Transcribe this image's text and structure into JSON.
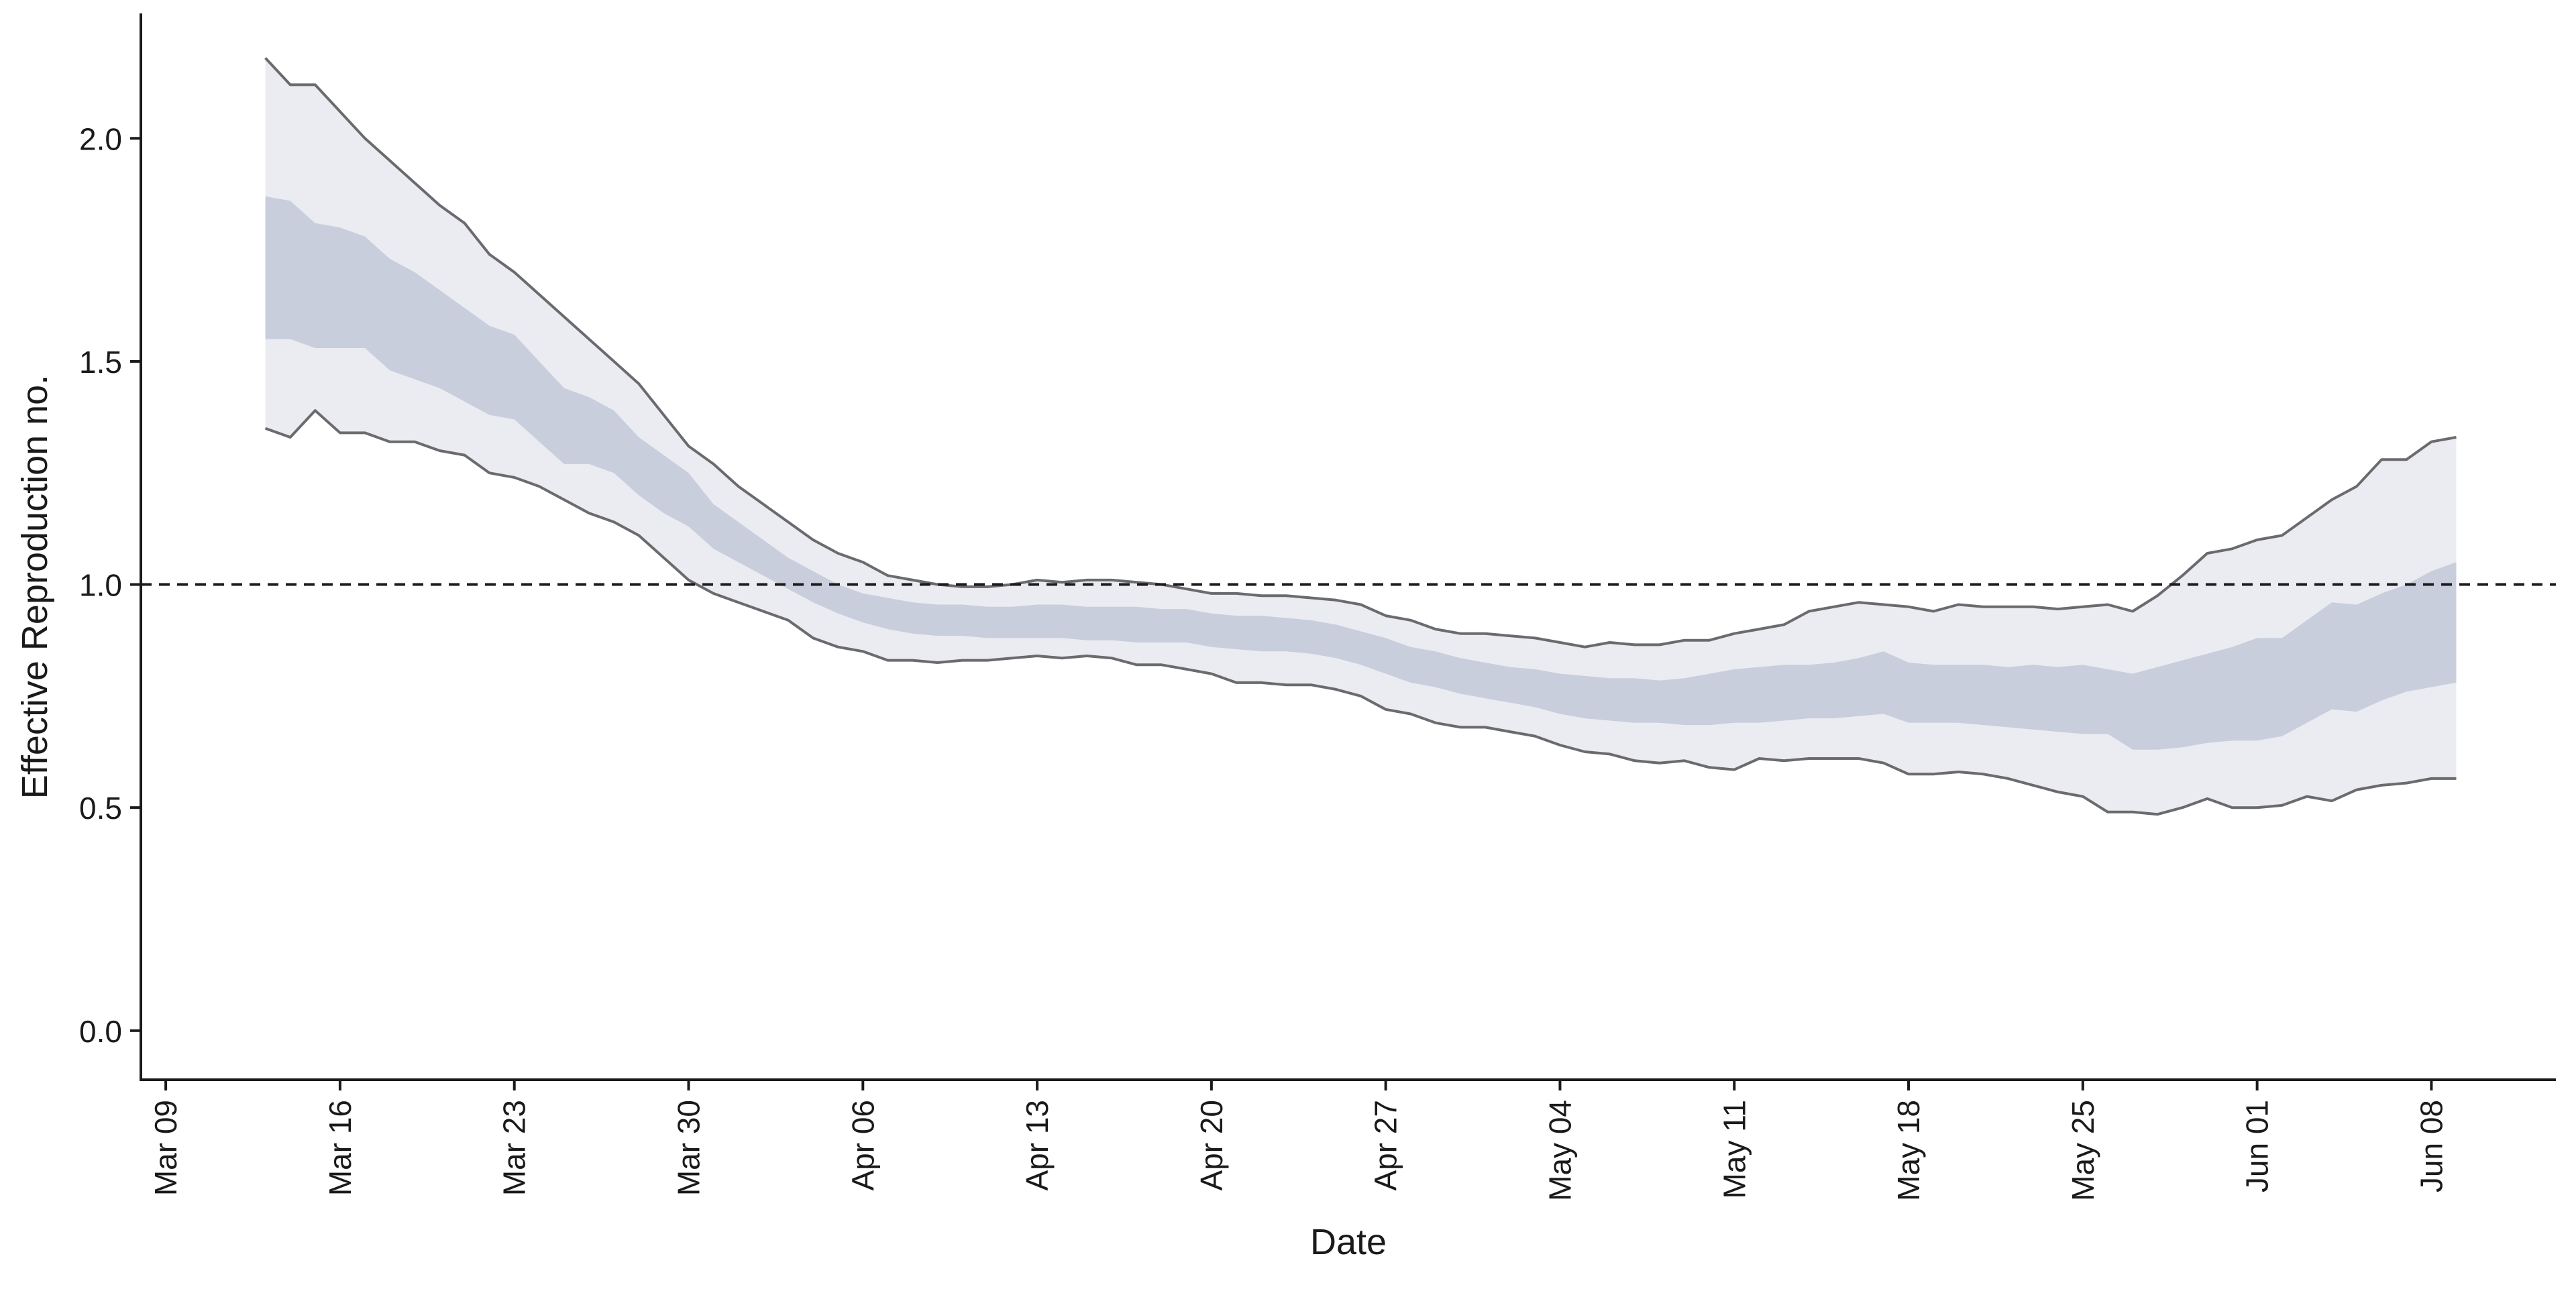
{
  "chart_data": {
    "type": "area",
    "xlabel": "Date",
    "ylabel": "Effective Reproduction no.",
    "x_ticks": [
      "Mar 09",
      "Mar 16",
      "Mar 23",
      "Mar 30",
      "Apr 06",
      "Apr 13",
      "Apr 20",
      "Apr 27",
      "May 04",
      "May 11",
      "May 18",
      "May 25",
      "Jun 01",
      "Jun 08"
    ],
    "y_ticks": [
      "0.0",
      "0.5",
      "1.0",
      "1.5",
      "2.0"
    ],
    "xlim": [
      "2020-03-08",
      "2020-06-13"
    ],
    "ylim": [
      -0.11,
      2.28
    ],
    "reference_line": {
      "y": 1.0,
      "style": "dashed"
    },
    "dates": [
      "2020-03-13",
      "2020-03-14",
      "2020-03-15",
      "2020-03-16",
      "2020-03-17",
      "2020-03-18",
      "2020-03-19",
      "2020-03-20",
      "2020-03-21",
      "2020-03-22",
      "2020-03-23",
      "2020-03-24",
      "2020-03-25",
      "2020-03-26",
      "2020-03-27",
      "2020-03-28",
      "2020-03-29",
      "2020-03-30",
      "2020-03-31",
      "2020-04-01",
      "2020-04-02",
      "2020-04-03",
      "2020-04-04",
      "2020-04-05",
      "2020-04-06",
      "2020-04-07",
      "2020-04-08",
      "2020-04-09",
      "2020-04-10",
      "2020-04-11",
      "2020-04-12",
      "2020-04-13",
      "2020-04-14",
      "2020-04-15",
      "2020-04-16",
      "2020-04-17",
      "2020-04-18",
      "2020-04-19",
      "2020-04-20",
      "2020-04-21",
      "2020-04-22",
      "2020-04-23",
      "2020-04-24",
      "2020-04-25",
      "2020-04-26",
      "2020-04-27",
      "2020-04-28",
      "2020-04-29",
      "2020-04-30",
      "2020-05-01",
      "2020-05-02",
      "2020-05-03",
      "2020-05-04",
      "2020-05-05",
      "2020-05-06",
      "2020-05-07",
      "2020-05-08",
      "2020-05-09",
      "2020-05-10",
      "2020-05-11",
      "2020-05-12",
      "2020-05-13",
      "2020-05-14",
      "2020-05-15",
      "2020-05-16",
      "2020-05-17",
      "2020-05-18",
      "2020-05-19",
      "2020-05-20",
      "2020-05-21",
      "2020-05-22",
      "2020-05-23",
      "2020-05-24",
      "2020-05-25",
      "2020-05-26",
      "2020-05-27",
      "2020-05-28",
      "2020-05-29",
      "2020-05-30",
      "2020-05-31",
      "2020-06-01",
      "2020-06-02",
      "2020-06-03",
      "2020-06-04",
      "2020-06-05",
      "2020-06-06",
      "2020-06-07",
      "2020-06-08",
      "2020-06-09"
    ],
    "upper_95": [
      2.18,
      2.12,
      2.12,
      2.06,
      2.0,
      1.95,
      1.9,
      1.85,
      1.81,
      1.74,
      1.7,
      1.65,
      1.6,
      1.55,
      1.5,
      1.45,
      1.38,
      1.31,
      1.27,
      1.22,
      1.18,
      1.14,
      1.1,
      1.07,
      1.05,
      1.02,
      1.01,
      1.0,
      0.995,
      0.995,
      1.0,
      1.01,
      1.005,
      1.01,
      1.01,
      1.005,
      1.0,
      0.99,
      0.98,
      0.98,
      0.975,
      0.975,
      0.97,
      0.965,
      0.955,
      0.93,
      0.92,
      0.9,
      0.89,
      0.89,
      0.885,
      0.88,
      0.87,
      0.86,
      0.87,
      0.865,
      0.865,
      0.875,
      0.875,
      0.89,
      0.9,
      0.91,
      0.94,
      0.95,
      0.96,
      0.955,
      0.95,
      0.94,
      0.955,
      0.95,
      0.95,
      0.95,
      0.945,
      0.95,
      0.955,
      0.94,
      0.975,
      1.02,
      1.07,
      1.08,
      1.1,
      1.11,
      1.15,
      1.19,
      1.22,
      1.28,
      1.28,
      1.32,
      1.33
    ],
    "upper_50": [
      1.87,
      1.86,
      1.81,
      1.8,
      1.78,
      1.73,
      1.7,
      1.66,
      1.62,
      1.58,
      1.56,
      1.5,
      1.44,
      1.42,
      1.39,
      1.33,
      1.29,
      1.25,
      1.18,
      1.14,
      1.1,
      1.06,
      1.03,
      1.0,
      0.98,
      0.97,
      0.96,
      0.955,
      0.955,
      0.95,
      0.95,
      0.955,
      0.955,
      0.95,
      0.95,
      0.95,
      0.945,
      0.945,
      0.935,
      0.93,
      0.93,
      0.925,
      0.92,
      0.91,
      0.895,
      0.88,
      0.86,
      0.85,
      0.835,
      0.825,
      0.815,
      0.81,
      0.8,
      0.795,
      0.79,
      0.79,
      0.785,
      0.79,
      0.8,
      0.81,
      0.815,
      0.82,
      0.82,
      0.825,
      0.835,
      0.85,
      0.825,
      0.82,
      0.82,
      0.82,
      0.815,
      0.82,
      0.815,
      0.82,
      0.81,
      0.8,
      0.815,
      0.83,
      0.845,
      0.86,
      0.88,
      0.88,
      0.92,
      0.96,
      0.955,
      0.98,
      1.0,
      1.03,
      1.05
    ],
    "lower_50": [
      1.55,
      1.55,
      1.53,
      1.53,
      1.53,
      1.48,
      1.46,
      1.44,
      1.41,
      1.38,
      1.37,
      1.32,
      1.27,
      1.27,
      1.25,
      1.2,
      1.16,
      1.13,
      1.08,
      1.05,
      1.02,
      0.99,
      0.96,
      0.935,
      0.915,
      0.9,
      0.89,
      0.885,
      0.885,
      0.88,
      0.88,
      0.88,
      0.88,
      0.875,
      0.875,
      0.87,
      0.87,
      0.87,
      0.86,
      0.855,
      0.85,
      0.85,
      0.845,
      0.835,
      0.82,
      0.8,
      0.78,
      0.77,
      0.755,
      0.745,
      0.735,
      0.725,
      0.71,
      0.7,
      0.695,
      0.69,
      0.69,
      0.685,
      0.685,
      0.69,
      0.69,
      0.695,
      0.7,
      0.7,
      0.705,
      0.71,
      0.69,
      0.69,
      0.69,
      0.685,
      0.68,
      0.675,
      0.67,
      0.665,
      0.665,
      0.63,
      0.63,
      0.635,
      0.645,
      0.65,
      0.65,
      0.66,
      0.69,
      0.72,
      0.715,
      0.74,
      0.76,
      0.77,
      0.78
    ],
    "lower_95": [
      1.35,
      1.33,
      1.39,
      1.34,
      1.34,
      1.32,
      1.32,
      1.3,
      1.29,
      1.25,
      1.24,
      1.22,
      1.19,
      1.16,
      1.14,
      1.11,
      1.06,
      1.01,
      0.98,
      0.96,
      0.94,
      0.92,
      0.88,
      0.86,
      0.85,
      0.83,
      0.83,
      0.825,
      0.83,
      0.83,
      0.835,
      0.84,
      0.835,
      0.84,
      0.835,
      0.82,
      0.82,
      0.81,
      0.8,
      0.78,
      0.78,
      0.775,
      0.775,
      0.765,
      0.75,
      0.72,
      0.71,
      0.69,
      0.68,
      0.68,
      0.67,
      0.66,
      0.64,
      0.625,
      0.62,
      0.605,
      0.6,
      0.605,
      0.59,
      0.585,
      0.61,
      0.605,
      0.61,
      0.61,
      0.61,
      0.6,
      0.575,
      0.575,
      0.58,
      0.575,
      0.565,
      0.55,
      0.535,
      0.525,
      0.49,
      0.49,
      0.485,
      0.5,
      0.52,
      0.5,
      0.5,
      0.505,
      0.525,
      0.515,
      0.54,
      0.55,
      0.555,
      0.565,
      0.565
    ],
    "colors": {
      "band_95": "#ebecf1",
      "band_50": "#c9cedd",
      "bound_line": "#6b6b6f",
      "reference_line": "#1a1a1a",
      "axis": "#1a1a1a"
    }
  }
}
